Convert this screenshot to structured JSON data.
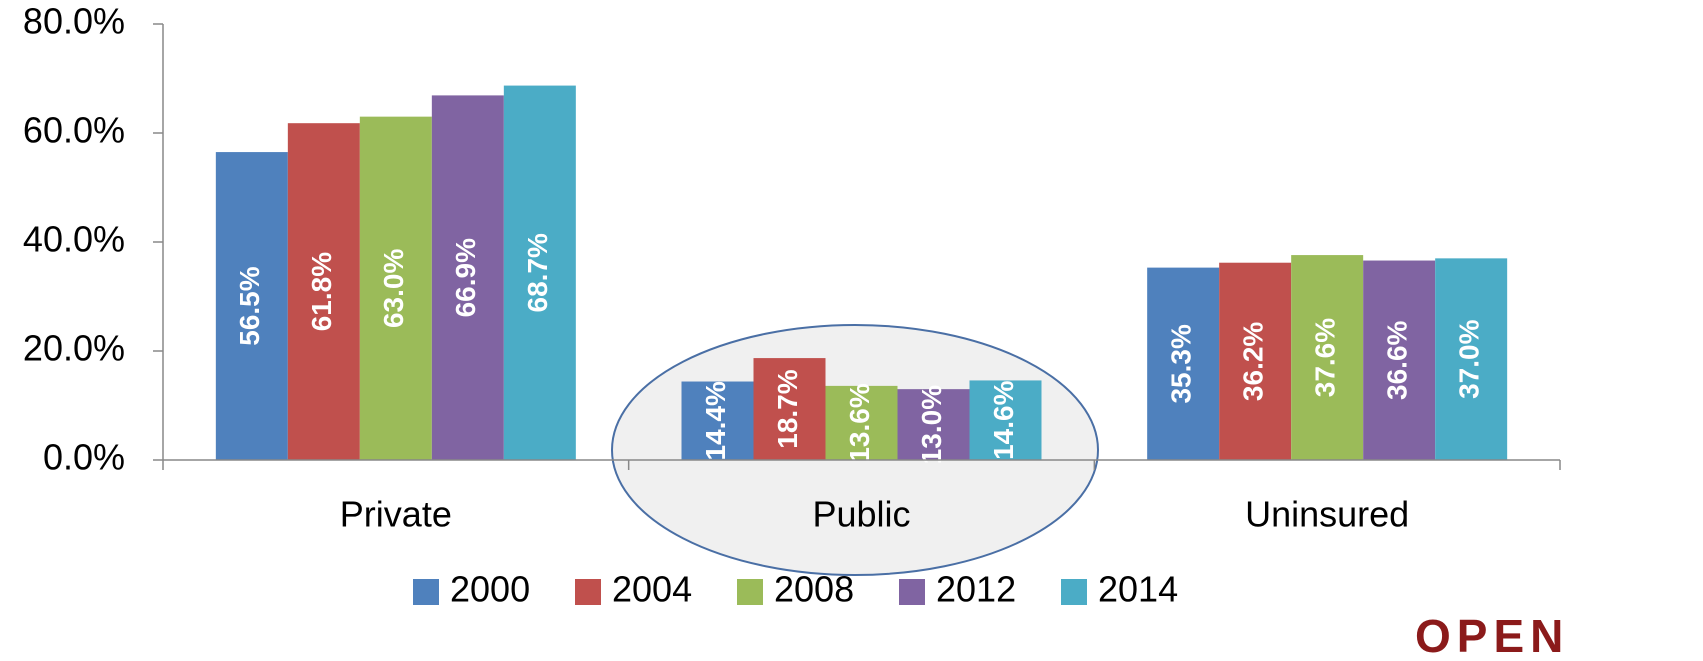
{
  "chart_data": {
    "type": "bar",
    "categories": [
      "Private",
      "Public",
      "Uninsured"
    ],
    "series": [
      {
        "name": "2000",
        "color": "#4f81bd",
        "values": [
          56.5,
          14.4,
          35.3
        ],
        "value_labels": [
          "56.5%",
          "14.4%",
          "35.3%"
        ]
      },
      {
        "name": "2004",
        "color": "#c0504d",
        "values": [
          61.8,
          18.7,
          36.2
        ],
        "value_labels": [
          "61.8%",
          "18.7%",
          "36.2%"
        ]
      },
      {
        "name": "2008",
        "color": "#9bbb59",
        "values": [
          63.0,
          13.6,
          37.6
        ],
        "value_labels": [
          "63.0%",
          "13.6%",
          "37.6%"
        ]
      },
      {
        "name": "2012",
        "color": "#8064a2",
        "values": [
          66.9,
          13.0,
          36.6
        ],
        "value_labels": [
          "66.9%",
          "13.0%",
          "36.6%"
        ]
      },
      {
        "name": "2014",
        "color": "#4bacc6",
        "values": [
          68.7,
          14.6,
          37.0
        ],
        "value_labels": [
          "68.7%",
          "14.6%",
          "37.0%"
        ]
      }
    ],
    "ylim": [
      0,
      80
    ],
    "yticks": [
      {
        "value": 0,
        "label": "0.0%"
      },
      {
        "value": 20,
        "label": "20.0%"
      },
      {
        "value": 40,
        "label": "40.0%"
      },
      {
        "value": 60,
        "label": "60.0%"
      },
      {
        "value": 80,
        "label": "80.0%"
      }
    ],
    "legend": "bottom",
    "logo": "OPEN"
  }
}
